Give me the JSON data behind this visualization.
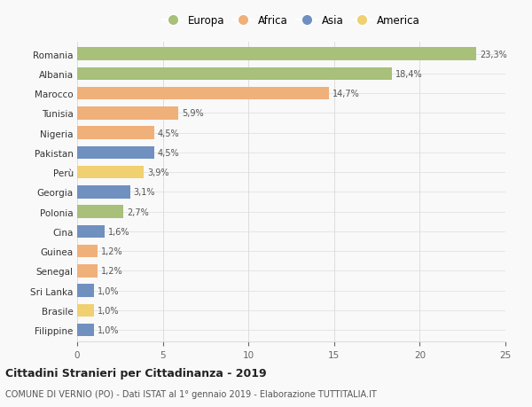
{
  "countries": [
    "Romania",
    "Albania",
    "Marocco",
    "Tunisia",
    "Nigeria",
    "Pakistan",
    "Perù",
    "Georgia",
    "Polonia",
    "Cina",
    "Guinea",
    "Senegal",
    "Sri Lanka",
    "Brasile",
    "Filippine"
  ],
  "values": [
    23.3,
    18.4,
    14.7,
    5.9,
    4.5,
    4.5,
    3.9,
    3.1,
    2.7,
    1.6,
    1.2,
    1.2,
    1.0,
    1.0,
    1.0
  ],
  "labels": [
    "23,3%",
    "18,4%",
    "14,7%",
    "5,9%",
    "4,5%",
    "4,5%",
    "3,9%",
    "3,1%",
    "2,7%",
    "1,6%",
    "1,2%",
    "1,2%",
    "1,0%",
    "1,0%",
    "1,0%"
  ],
  "continents": [
    "Europa",
    "Europa",
    "Africa",
    "Africa",
    "Africa",
    "Asia",
    "America",
    "Asia",
    "Europa",
    "Asia",
    "Africa",
    "Africa",
    "Asia",
    "America",
    "Asia"
  ],
  "continent_colors": {
    "Europa": "#a8c07a",
    "Africa": "#f0b07a",
    "Asia": "#7090c0",
    "America": "#f0d070"
  },
  "legend_order": [
    "Europa",
    "Africa",
    "Asia",
    "America"
  ],
  "xlim": [
    0,
    25
  ],
  "xticks": [
    0,
    5,
    10,
    15,
    20,
    25
  ],
  "title": "Cittadini Stranieri per Cittadinanza - 2019",
  "subtitle": "COMUNE DI VERNIO (PO) - Dati ISTAT al 1° gennaio 2019 - Elaborazione TUTTITALIA.IT",
  "bg_color": "#f9f9f9",
  "grid_color": "#dddddd",
  "bar_height": 0.65
}
